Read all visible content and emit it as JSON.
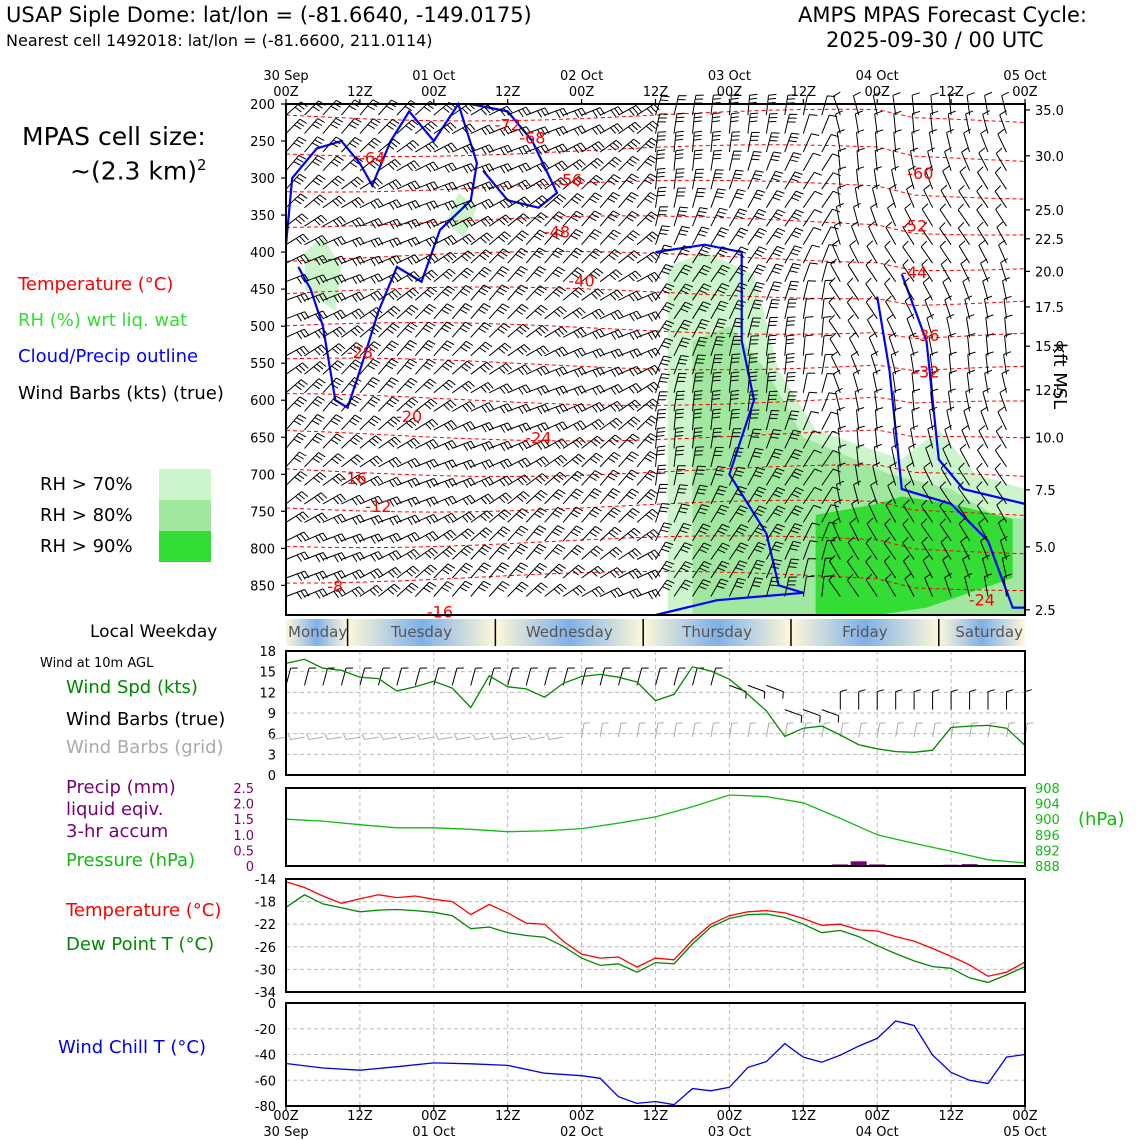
{
  "header": {
    "station": "USAP Siple Dome: lat/lon = (-81.6640, -149.0175)",
    "cell": "Nearest cell 1492018: lat/lon = (-81.6600, 211.0114)",
    "model_line1": "AMPS MPAS Forecast Cycle:",
    "model_line2": "2025-09-30 / 00 UTC"
  },
  "legend": {
    "cell_size_label": "MPAS cell size:",
    "cell_size_value": "~(2.3 km)",
    "cell_size_exp": "2",
    "temperature": "Temperature (°C)",
    "rh": "RH (%) wrt liq. wat",
    "cloud": "Cloud/Precip outline",
    "barbs": "Wind Barbs (kts) (true)",
    "rh70": "RH > 70%",
    "rh80": "RH > 80%",
    "rh90": "RH > 90%"
  },
  "colors": {
    "temp": "#ff0000",
    "rh_text": "#33dd33",
    "cloud": "#0000ff",
    "rh70": "#ccf5cc",
    "rh80": "#a0e8a0",
    "rh90": "#33dd33",
    "wind_spd": "#008800",
    "grid_barbs": "#aaaaaa",
    "precip": "#770077",
    "pressure": "#11bb11",
    "dewpoint": "#008800",
    "windchill": "#0000ee"
  },
  "time_axis": {
    "top_labels": [
      {
        "t": 0,
        "l1": "30 Sep",
        "l2": "00Z"
      },
      {
        "t": 12,
        "l1": "",
        "l2": "12Z"
      },
      {
        "t": 24,
        "l1": "01 Oct",
        "l2": "00Z"
      },
      {
        "t": 36,
        "l1": "",
        "l2": "12Z"
      },
      {
        "t": 48,
        "l1": "02 Oct",
        "l2": "00Z"
      },
      {
        "t": 60,
        "l1": "",
        "l2": "12Z"
      },
      {
        "t": 72,
        "l1": "03 Oct",
        "l2": "00Z"
      },
      {
        "t": 84,
        "l1": "",
        "l2": "12Z"
      },
      {
        "t": 96,
        "l1": "04 Oct",
        "l2": "00Z"
      },
      {
        "t": 108,
        "l1": "",
        "l2": "12Z"
      },
      {
        "t": 120,
        "l1": "05 Oct",
        "l2": "00Z"
      }
    ]
  },
  "weekday_bar": {
    "title": "Local Weekday",
    "days": [
      "Monday",
      "Tuesday",
      "Wednesday",
      "Thursday",
      "Friday",
      "Saturday"
    ]
  },
  "wind_panel": {
    "title": "Wind at 10m AGL",
    "spd_label": "Wind Spd (kts)",
    "true_label": "Wind Barbs (true)",
    "grid_label": "Wind Barbs (grid)"
  },
  "precip_panel": {
    "l1": "Precip (mm)",
    "l2": "liquid eqiv.",
    "l3": "3-hr accum",
    "l4": "Pressure (hPa)",
    "right_unit": "(hPa)"
  },
  "temp_panel": {
    "t_label": "Temperature (°C)",
    "td_label": "Dew Point T (°C)"
  },
  "wc_panel": {
    "label": "Wind Chill T (°C)"
  },
  "chart_data": [
    {
      "type": "heatmap",
      "title": "",
      "x_unit": "forecast hour",
      "xlim": [
        0,
        120
      ],
      "ylabel_right": "kft MSL",
      "ylim_hpa": [
        200,
        890
      ],
      "left_ticks_hpa": [
        200,
        250,
        300,
        350,
        400,
        450,
        500,
        550,
        600,
        650,
        700,
        750,
        800,
        850
      ],
      "right_ticks": [
        {
          "p": 208,
          "l": "35.0"
        },
        {
          "p": 270,
          "l": "30.0"
        },
        {
          "p": 343,
          "l": "25.0"
        },
        {
          "p": 382,
          "l": "22.5"
        },
        {
          "p": 426,
          "l": "20.0"
        },
        {
          "p": 474,
          "l": "17.5"
        },
        {
          "p": 527,
          "l": "15.0"
        },
        {
          "p": 586,
          "l": "12.5"
        },
        {
          "p": 650,
          "l": "10.0"
        },
        {
          "p": 721,
          "l": "7.5"
        },
        {
          "p": 798,
          "l": "5.0"
        },
        {
          "p": 883,
          "l": "2.5"
        }
      ],
      "temp_labels": [
        {
          "t": 36,
          "p": 228,
          "v": "-72"
        },
        {
          "t": 40,
          "p": 245,
          "v": "-68"
        },
        {
          "t": 14,
          "p": 272,
          "v": "-64"
        },
        {
          "t": 46,
          "p": 302,
          "v": "-56"
        },
        {
          "t": 103,
          "p": 293,
          "v": "-60"
        },
        {
          "t": 44,
          "p": 372,
          "v": "-48"
        },
        {
          "t": 102,
          "p": 364,
          "v": "-52"
        },
        {
          "t": 48,
          "p": 438,
          "v": "-40"
        },
        {
          "t": 102,
          "p": 427,
          "v": "-44"
        },
        {
          "t": 104,
          "p": 512,
          "v": "-36"
        },
        {
          "t": 104,
          "p": 561,
          "v": "-32"
        },
        {
          "t": 12,
          "p": 535,
          "v": "-28"
        },
        {
          "t": 41,
          "p": 650,
          "v": "-24"
        },
        {
          "t": 20,
          "p": 621,
          "v": "-20"
        },
        {
          "t": 11,
          "p": 705,
          "v": "-16"
        },
        {
          "t": 15,
          "p": 743,
          "v": "-12"
        },
        {
          "t": 25,
          "p": 885,
          "v": "-16"
        },
        {
          "t": 8,
          "p": 851,
          "v": "-8"
        },
        {
          "t": 113,
          "p": 869,
          "v": "-24"
        }
      ]
    },
    {
      "type": "line",
      "title": "",
      "x": [
        0,
        3,
        6,
        9,
        12,
        15,
        18,
        21,
        24,
        27,
        30,
        33,
        36,
        39,
        42,
        45,
        48,
        51,
        54,
        57,
        60,
        63,
        66,
        69,
        72,
        75,
        78,
        81,
        84,
        87,
        90,
        93,
        96,
        99,
        102,
        105,
        108,
        111,
        114,
        117,
        120
      ],
      "ylim": [
        0,
        18
      ],
      "yticks": [
        0,
        3,
        6,
        9,
        12,
        15,
        18
      ],
      "series": [
        {
          "name": "Wind Spd (kts)",
          "values": [
            16.2,
            16.8,
            15.5,
            15.2,
            14.2,
            14,
            12.2,
            12.8,
            13.6,
            12.6,
            9.8,
            14.4,
            12.8,
            12.5,
            11.3,
            13.3,
            14.3,
            14.6,
            14.2,
            13.5,
            10.8,
            11.7,
            15.7,
            15.1,
            13.9,
            11.7,
            9.3,
            5.6,
            6.8,
            7.1,
            5.8,
            4.4,
            3.8,
            3.4,
            3.3,
            3.6,
            6.9,
            7.1,
            7.2,
            6.8,
            4.3
          ]
        }
      ]
    },
    {
      "type": "bar",
      "title": "",
      "categories": [
        90,
        93,
        96,
        99,
        108,
        111
      ],
      "ylim": [
        0,
        2.5
      ],
      "yticks": [
        "0",
        "0.5",
        "1.0",
        "1.5",
        "2.0",
        "2.5"
      ],
      "values": [
        0.05,
        0.15,
        0.05,
        0.03,
        0.04,
        0.06
      ],
      "pressure": {
        "name": "Pressure (hPa)",
        "ylim": [
          888,
          908
        ],
        "yticks": [
          888,
          892,
          896,
          900,
          904,
          908
        ],
        "x": [
          0,
          6,
          12,
          18,
          24,
          30,
          36,
          42,
          48,
          54,
          60,
          66,
          72,
          78,
          84,
          90,
          96,
          102,
          108,
          114,
          120
        ],
        "values": [
          900,
          899.5,
          898.6,
          897.8,
          897.8,
          897.4,
          896.8,
          897.0,
          897.6,
          899.0,
          900.6,
          903.2,
          906.2,
          905.8,
          904.2,
          900.2,
          896.0,
          893.8,
          891.8,
          889.6,
          888.8
        ]
      }
    },
    {
      "type": "line",
      "title": "",
      "x": [
        0,
        3,
        6,
        9,
        12,
        15,
        18,
        21,
        24,
        27,
        30,
        33,
        36,
        39,
        42,
        45,
        48,
        51,
        54,
        57,
        60,
        63,
        66,
        69,
        72,
        75,
        78,
        81,
        84,
        87,
        90,
        93,
        96,
        99,
        102,
        105,
        108,
        111,
        114,
        117,
        120
      ],
      "ylim": [
        -34,
        -14
      ],
      "yticks": [
        -14,
        -18,
        -22,
        -26,
        -30,
        -34
      ],
      "series": [
        {
          "name": "Temperature (°C)",
          "values": [
            -14.5,
            -15.5,
            -17,
            -18.3,
            -17.5,
            -16.8,
            -17.3,
            -17,
            -17.6,
            -18,
            -20.3,
            -18.5,
            -20,
            -21.8,
            -22,
            -25,
            -27.3,
            -28,
            -27.8,
            -29.6,
            -28,
            -28.3,
            -24.8,
            -22,
            -20.5,
            -19.8,
            -19.6,
            -20,
            -21,
            -22.2,
            -22,
            -23,
            -23.2,
            -24.2,
            -25,
            -26.3,
            -27.7,
            -29.2,
            -31.2,
            -30.5,
            -28.7
          ]
        },
        {
          "name": "Dew Point T (°C)",
          "values": [
            -19,
            -16.8,
            -18.4,
            -19.1,
            -19.8,
            -19.5,
            -19.4,
            -19.6,
            -19.9,
            -20.5,
            -22.8,
            -22.5,
            -23.5,
            -24,
            -24.3,
            -25.9,
            -28,
            -29.3,
            -29,
            -30.5,
            -28.8,
            -29,
            -25.5,
            -22.5,
            -21,
            -20.3,
            -20.2,
            -20.8,
            -22,
            -23.5,
            -23.1,
            -24.2,
            -25.8,
            -27.2,
            -28.5,
            -29.5,
            -29.8,
            -31.5,
            -32.3,
            -31,
            -29.5
          ]
        }
      ]
    },
    {
      "type": "line",
      "title": "",
      "x": [
        0,
        6,
        12,
        18,
        24,
        30,
        36,
        42,
        48,
        51,
        54,
        57,
        60,
        63,
        66,
        69,
        72,
        75,
        78,
        81,
        84,
        87,
        90,
        93,
        96,
        99,
        102,
        105,
        108,
        111,
        114,
        117,
        120
      ],
      "ylim": [
        -80,
        0
      ],
      "yticks": [
        0,
        -20,
        -40,
        -60,
        -80
      ],
      "series": [
        {
          "name": "Wind Chill T (°C)",
          "values": [
            -47,
            -50.5,
            -52.2,
            -49.5,
            -46.5,
            -47.2,
            -48.5,
            -54.5,
            -56.5,
            -58.5,
            -72.8,
            -78,
            -76.5,
            -79,
            -66.5,
            -68.2,
            -65.5,
            -50,
            -45.5,
            -31.5,
            -42,
            -46,
            -40.5,
            -33.5,
            -27.5,
            -14,
            -17.5,
            -40.5,
            -54,
            -60,
            -62.5,
            -42,
            -40
          ]
        }
      ]
    }
  ]
}
